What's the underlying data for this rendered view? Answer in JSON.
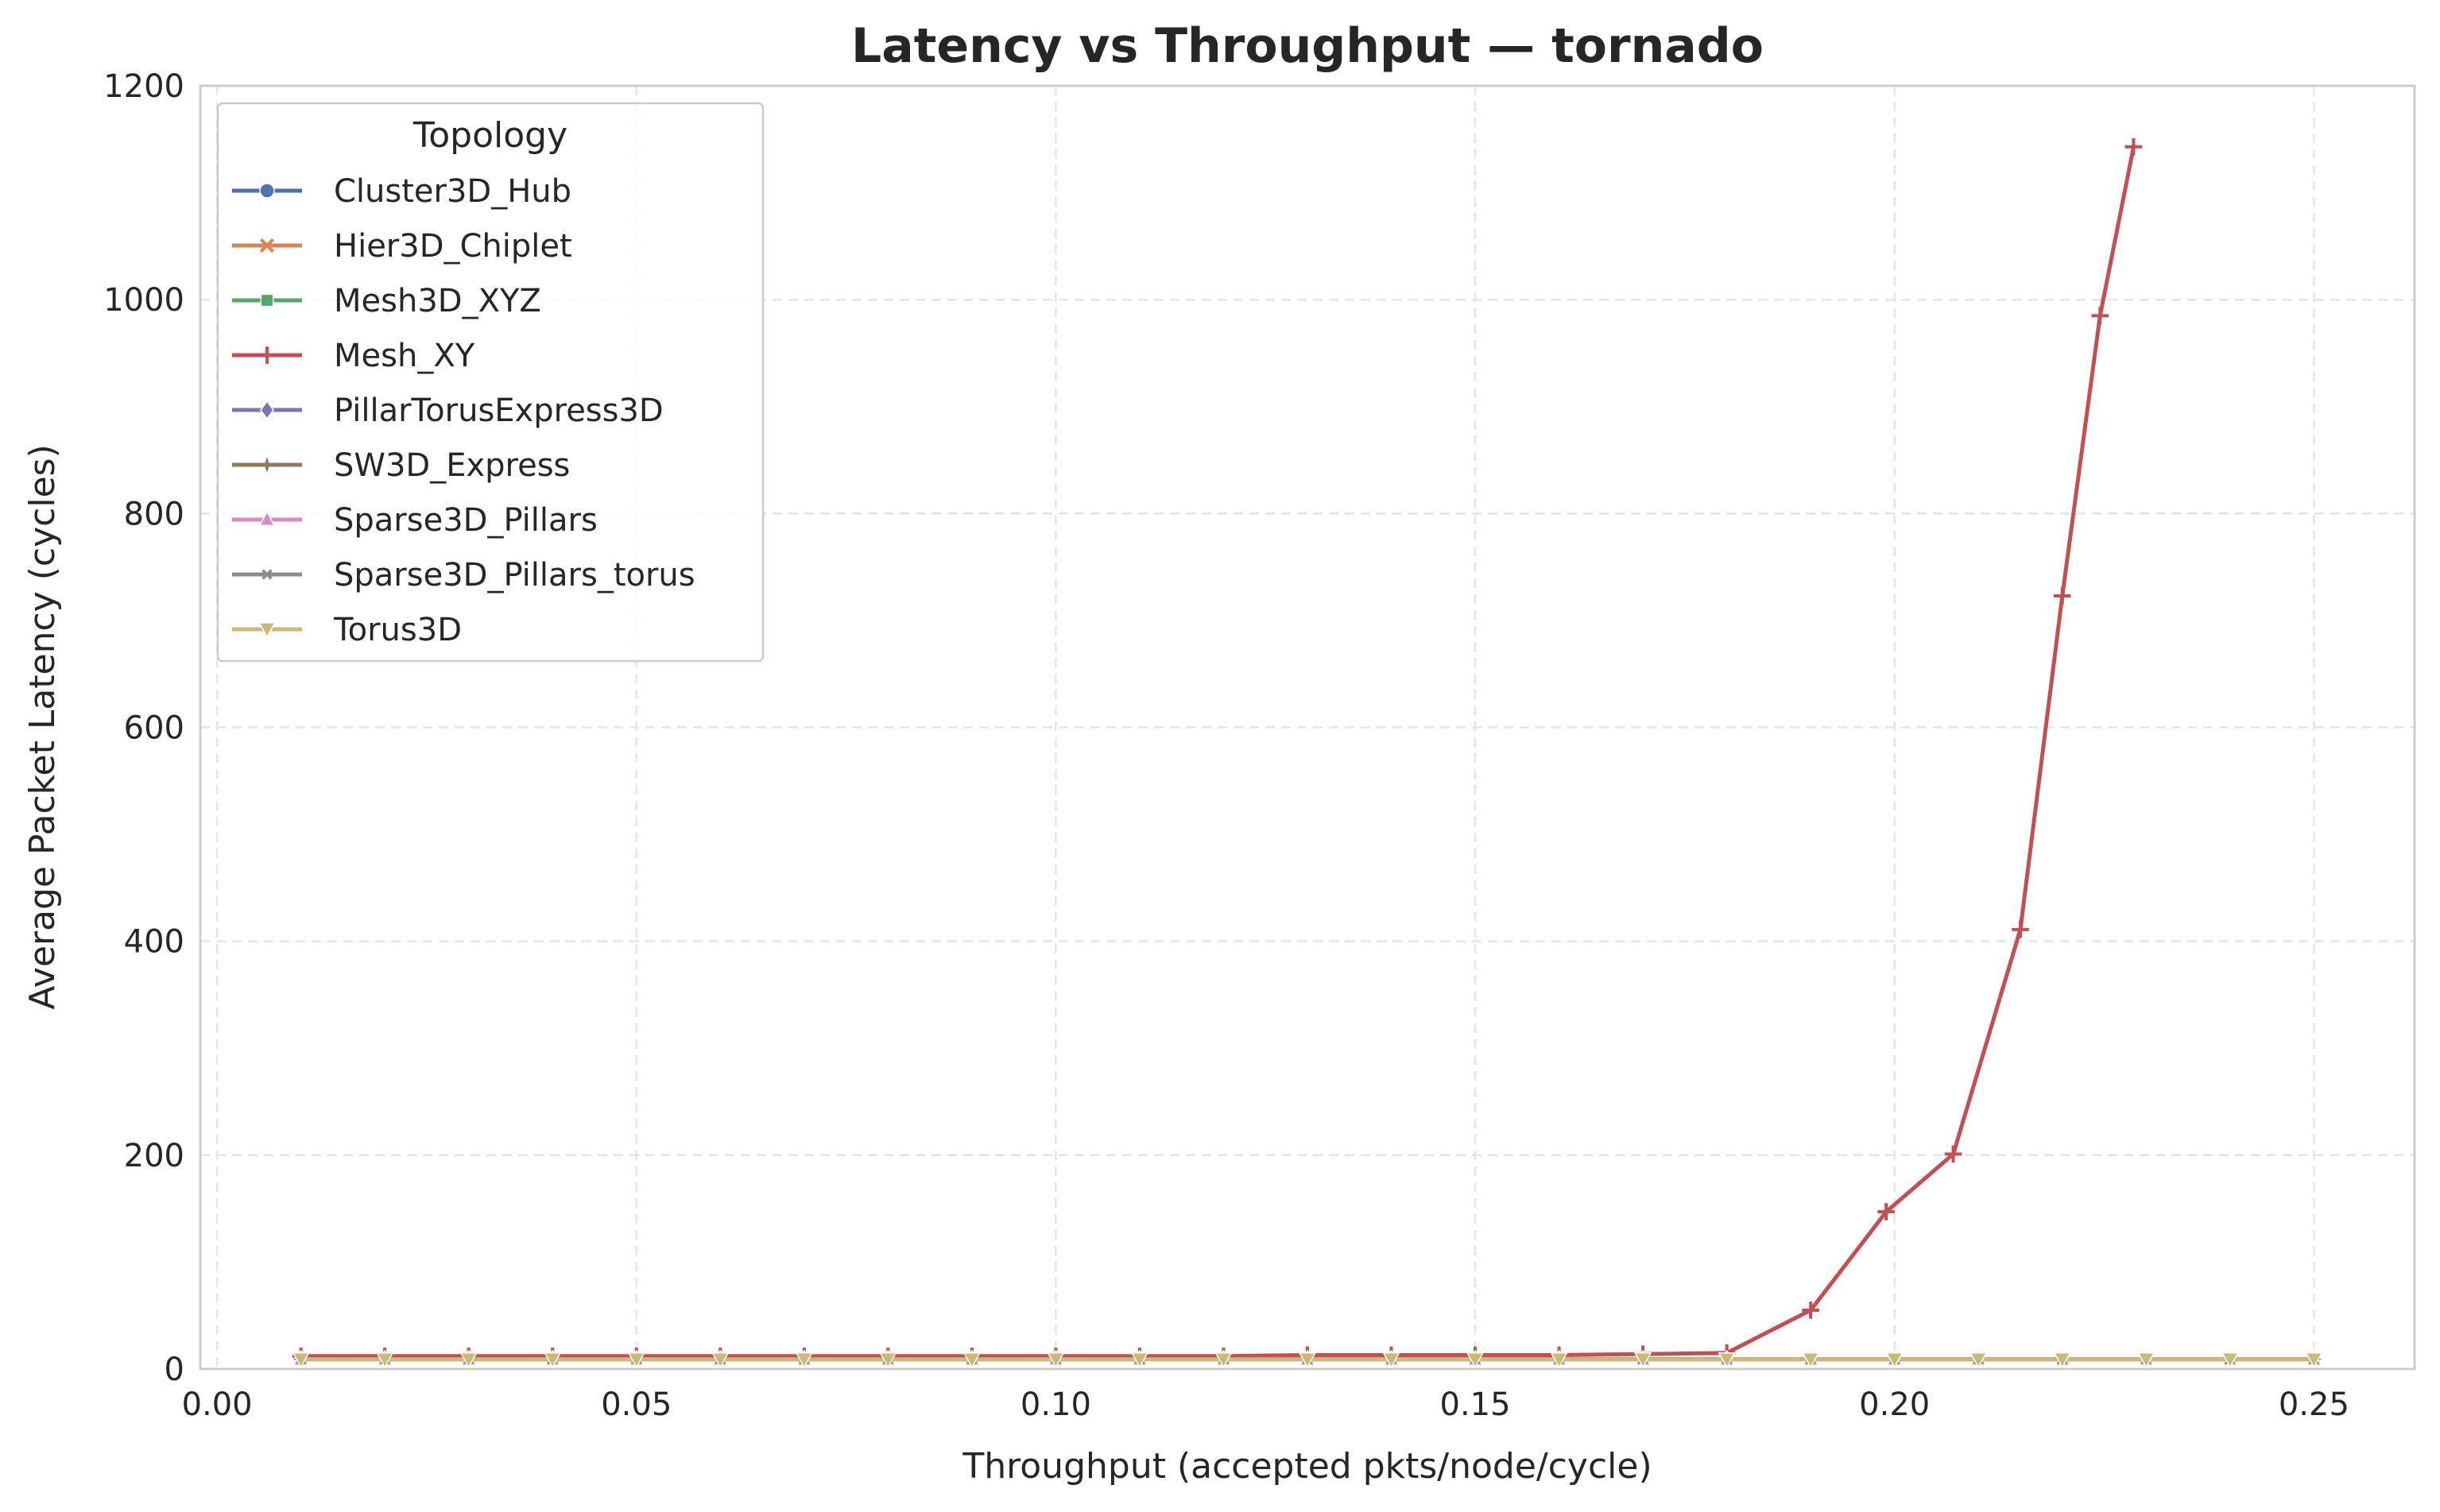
{
  "chart_data": {
    "type": "line",
    "title": "Latency vs Throughput — tornado",
    "xlabel": "Throughput (accepted pkts/node/cycle)",
    "ylabel": "Average Packet Latency (cycles)",
    "xlim": [
      -0.002,
      0.262
    ],
    "ylim": [
      0,
      1200
    ],
    "xticks": [
      0.0,
      0.05,
      0.1,
      0.15,
      0.2,
      0.25
    ],
    "xtick_labels": [
      "0.00",
      "0.05",
      "0.10",
      "0.15",
      "0.20",
      "0.25"
    ],
    "yticks": [
      0,
      200,
      400,
      600,
      800,
      1000,
      1200
    ],
    "ytick_labels": [
      "0",
      "200",
      "400",
      "600",
      "800",
      "1000",
      "1200"
    ],
    "grid": true,
    "legend": {
      "title": "Topology",
      "placement": "upper-left"
    },
    "series": [
      {
        "name": "Cluster3D_Hub",
        "color": "#4c72b0",
        "marker": "circle",
        "x": [
          0.01,
          0.02,
          0.03,
          0.04,
          0.05,
          0.06,
          0.07,
          0.08,
          0.09,
          0.1,
          0.11,
          0.12,
          0.13,
          0.14,
          0.15,
          0.16,
          0.17,
          0.18,
          0.19,
          0.2,
          0.21,
          0.22,
          0.23,
          0.24,
          0.25
        ],
        "y": [
          9,
          9,
          9,
          9,
          9,
          9,
          9,
          9,
          9,
          9,
          9,
          9,
          9,
          9,
          9,
          9,
          9,
          9,
          9,
          9,
          9,
          9,
          9,
          9,
          9
        ]
      },
      {
        "name": "Hier3D_Chiplet",
        "color": "#dd8452",
        "marker": "x",
        "x": [
          0.01,
          0.02,
          0.03,
          0.04,
          0.05,
          0.06,
          0.07,
          0.08,
          0.09,
          0.1,
          0.11,
          0.12,
          0.13,
          0.14,
          0.15,
          0.16,
          0.17,
          0.18,
          0.19,
          0.2,
          0.21,
          0.22,
          0.23,
          0.24,
          0.25
        ],
        "y": [
          9,
          9,
          9,
          9,
          9,
          9,
          9,
          9,
          9,
          9,
          9,
          9,
          9,
          9,
          9,
          9,
          9,
          9,
          9,
          9,
          9,
          9,
          9,
          9,
          9
        ]
      },
      {
        "name": "Mesh3D_XYZ",
        "color": "#55a868",
        "marker": "square",
        "x": [
          0.01,
          0.02,
          0.03,
          0.04,
          0.05,
          0.06,
          0.07,
          0.08,
          0.09,
          0.1,
          0.11,
          0.12,
          0.13,
          0.14,
          0.15,
          0.16,
          0.17,
          0.18,
          0.19,
          0.2,
          0.21,
          0.22,
          0.23,
          0.24,
          0.25
        ],
        "y": [
          9,
          9,
          9,
          9,
          9,
          9,
          9,
          9,
          9,
          9,
          9,
          9,
          9,
          9,
          9,
          9,
          9,
          9,
          9,
          9,
          9,
          9,
          9,
          9,
          9
        ]
      },
      {
        "name": "Mesh_XY",
        "color": "#c44e52",
        "marker": "plus",
        "x": [
          0.01,
          0.02,
          0.03,
          0.04,
          0.05,
          0.06,
          0.07,
          0.08,
          0.09,
          0.1,
          0.11,
          0.12,
          0.13,
          0.14,
          0.15,
          0.16,
          0.17,
          0.18,
          0.19,
          0.199,
          0.207,
          0.215,
          0.22,
          0.2245,
          0.2285
        ],
        "y": [
          12,
          12,
          12,
          12,
          12,
          12,
          12,
          12,
          12,
          12,
          12,
          12,
          13,
          13,
          13,
          13,
          14,
          15,
          55,
          147,
          201,
          411,
          723,
          985,
          1143
        ]
      },
      {
        "name": "PillarTorusExpress3D",
        "color": "#8172b3",
        "marker": "diamond",
        "x": [
          0.01,
          0.02,
          0.03,
          0.04,
          0.05,
          0.06,
          0.07,
          0.08,
          0.09,
          0.1,
          0.11,
          0.12,
          0.13,
          0.14,
          0.15,
          0.16,
          0.17,
          0.18,
          0.19,
          0.2,
          0.21,
          0.22,
          0.23,
          0.24,
          0.25
        ],
        "y": [
          9,
          9,
          9,
          9,
          9,
          9,
          9,
          9,
          9,
          9,
          9,
          9,
          9,
          9,
          9,
          9,
          9,
          9,
          9,
          9,
          9,
          9,
          9,
          9,
          9
        ]
      },
      {
        "name": "SW3D_Express",
        "color": "#937860",
        "marker": "star",
        "x": [
          0.01,
          0.02,
          0.03,
          0.04,
          0.05,
          0.06,
          0.07,
          0.08,
          0.09,
          0.1,
          0.11,
          0.12,
          0.13,
          0.14,
          0.15,
          0.16,
          0.17,
          0.18,
          0.19,
          0.2,
          0.21,
          0.22,
          0.23,
          0.24,
          0.25
        ],
        "y": [
          9,
          9,
          9,
          9,
          9,
          9,
          9,
          9,
          9,
          9,
          9,
          9,
          9,
          9,
          9,
          9,
          9,
          9,
          9,
          9,
          9,
          9,
          9,
          9,
          9
        ]
      },
      {
        "name": "Sparse3D_Pillars",
        "color": "#da8bc3",
        "marker": "triangle-up",
        "x": [
          0.01,
          0.02,
          0.03,
          0.04,
          0.05,
          0.06,
          0.07,
          0.08,
          0.09,
          0.1,
          0.11,
          0.12,
          0.13,
          0.14,
          0.15,
          0.16,
          0.17,
          0.18,
          0.19,
          0.2,
          0.21,
          0.22,
          0.23,
          0.24,
          0.25
        ],
        "y": [
          9,
          9,
          9,
          9,
          9,
          9,
          9,
          9,
          9,
          9,
          9,
          9,
          9,
          9,
          9,
          9,
          9,
          9,
          9,
          9,
          9,
          9,
          9,
          9,
          9
        ]
      },
      {
        "name": "Sparse3D_Pillars_torus",
        "color": "#8c8c8c",
        "marker": "small-x",
        "x": [
          0.01,
          0.02,
          0.03,
          0.04,
          0.05,
          0.06,
          0.07,
          0.08,
          0.09,
          0.1,
          0.11,
          0.12,
          0.13,
          0.14,
          0.15,
          0.16,
          0.17,
          0.18,
          0.19,
          0.2,
          0.21,
          0.22,
          0.23,
          0.24,
          0.25
        ],
        "y": [
          9,
          9,
          9,
          9,
          9,
          9,
          9,
          9,
          9,
          9,
          9,
          9,
          9,
          9,
          9,
          9,
          9,
          9,
          9,
          9,
          9,
          9,
          9,
          9,
          9
        ]
      },
      {
        "name": "Torus3D",
        "color": "#ccb974",
        "marker": "triangle-down",
        "x": [
          0.01,
          0.02,
          0.03,
          0.04,
          0.05,
          0.06,
          0.07,
          0.08,
          0.09,
          0.1,
          0.11,
          0.12,
          0.13,
          0.14,
          0.15,
          0.16,
          0.17,
          0.18,
          0.19,
          0.2,
          0.21,
          0.22,
          0.23,
          0.24,
          0.25
        ],
        "y": [
          9,
          9,
          9,
          9,
          9,
          9,
          9,
          9,
          9,
          9,
          9,
          9,
          9,
          9,
          9,
          9,
          9,
          9,
          9,
          9,
          9,
          9,
          9,
          9,
          9
        ]
      }
    ]
  }
}
